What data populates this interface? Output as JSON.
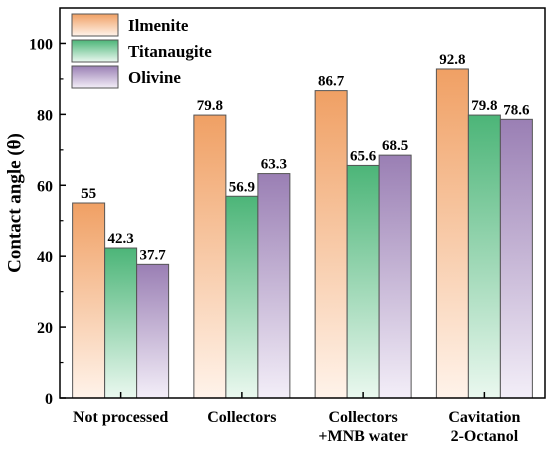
{
  "chart_data": {
    "type": "bar",
    "ylabel": "Contact angle (θ)",
    "ylim": [
      0,
      110
    ],
    "yticks": [
      "0",
      "20",
      "40",
      "60",
      "80",
      "100"
    ],
    "grid": false,
    "legend_position": "top-left",
    "categories": [
      [
        "Not processed"
      ],
      [
        "Collectors"
      ],
      [
        "Collectors",
        "+MNB water"
      ],
      [
        "Cavitation",
        "2-Octanol"
      ]
    ],
    "series": [
      {
        "name": "Ilmenite",
        "values": [
          55,
          79.8,
          86.7,
          92.8
        ],
        "labels": [
          "55",
          "79.8",
          "86.7",
          "92.8"
        ],
        "color_top": "#f0a064",
        "color_bottom": "#fff3ea",
        "edge": "#555555"
      },
      {
        "name": "Titanaugite",
        "values": [
          42.3,
          56.9,
          65.6,
          79.8
        ],
        "labels": [
          "42.3",
          "56.9",
          "65.6",
          "79.8"
        ],
        "color_top": "#4cb578",
        "color_bottom": "#eaf8ef",
        "edge": "#555555"
      },
      {
        "name": "Olivine",
        "values": [
          37.7,
          63.3,
          68.5,
          78.6
        ],
        "labels": [
          "37.7",
          "63.3",
          "68.5",
          "78.6"
        ],
        "color_top": "#9a7fb4",
        "color_bottom": "#f3eef8",
        "edge": "#555555"
      }
    ]
  }
}
